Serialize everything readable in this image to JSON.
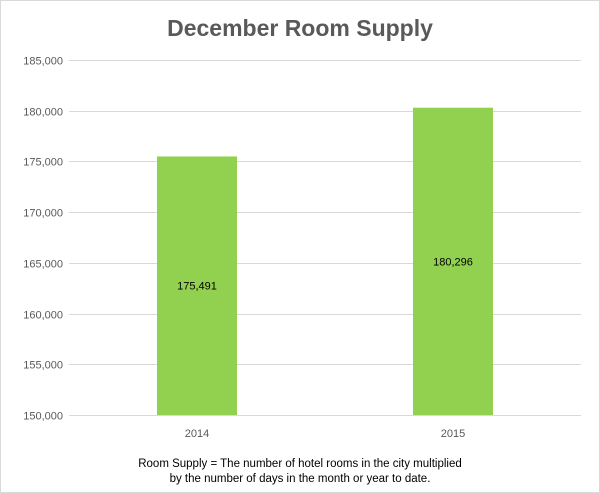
{
  "colors": {
    "bar": "#92d050",
    "grid": "#d9d9d9",
    "tick_text": "#595959",
    "title": "#595959"
  },
  "chart_data": {
    "type": "bar",
    "title": "December Room Supply",
    "xlabel": "",
    "ylabel": "",
    "categories": [
      "2014",
      "2015"
    ],
    "values": [
      175491,
      180296
    ],
    "data_labels": [
      "175,491",
      "180,296"
    ],
    "ylim": [
      150000,
      185000
    ],
    "y_ticks": [
      150000,
      155000,
      160000,
      165000,
      170000,
      175000,
      180000,
      185000
    ],
    "y_tick_labels": [
      "150,000",
      "155,000",
      "160,000",
      "165,000",
      "170,000",
      "175,000",
      "180,000",
      "185,000"
    ],
    "grid": true,
    "legend": "none"
  },
  "footnote": {
    "line1": "Room Supply = The number of hotel rooms in the city multiplied",
    "line2": "by the number of days in the month or year to date."
  }
}
